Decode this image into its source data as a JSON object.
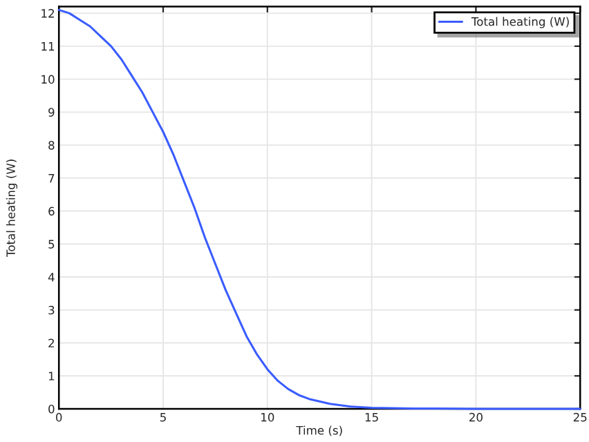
{
  "chart_data": {
    "type": "line",
    "xlabel": "Time (s)",
    "ylabel": "Total heating (W)",
    "xlim": [
      0,
      25
    ],
    "ylim": [
      0,
      12.2
    ],
    "xticks": [
      0,
      5,
      10,
      15,
      20,
      25
    ],
    "yticks": [
      0,
      1,
      2,
      3,
      4,
      5,
      6,
      7,
      8,
      9,
      10,
      11,
      12
    ],
    "grid": true,
    "legend": "top right",
    "series": [
      {
        "name": "Total heating (W)",
        "color": "#3a5cff",
        "x": [
          0,
          0.5,
          1,
          1.5,
          2,
          2.5,
          3,
          3.5,
          4,
          4.5,
          5,
          5.5,
          6,
          6.5,
          7,
          7.5,
          8,
          8.5,
          9,
          9.5,
          10,
          10.5,
          11,
          11.5,
          12,
          13,
          14,
          15,
          16,
          17,
          18,
          20,
          22,
          25
        ],
        "values": [
          12.1,
          12.0,
          11.8,
          11.6,
          11.3,
          11.0,
          10.6,
          10.1,
          9.6,
          9.0,
          8.4,
          7.7,
          6.9,
          6.1,
          5.2,
          4.4,
          3.6,
          2.9,
          2.2,
          1.65,
          1.2,
          0.85,
          0.6,
          0.42,
          0.3,
          0.15,
          0.07,
          0.03,
          0.02,
          0.01,
          0.01,
          0,
          0,
          0
        ]
      }
    ]
  }
}
